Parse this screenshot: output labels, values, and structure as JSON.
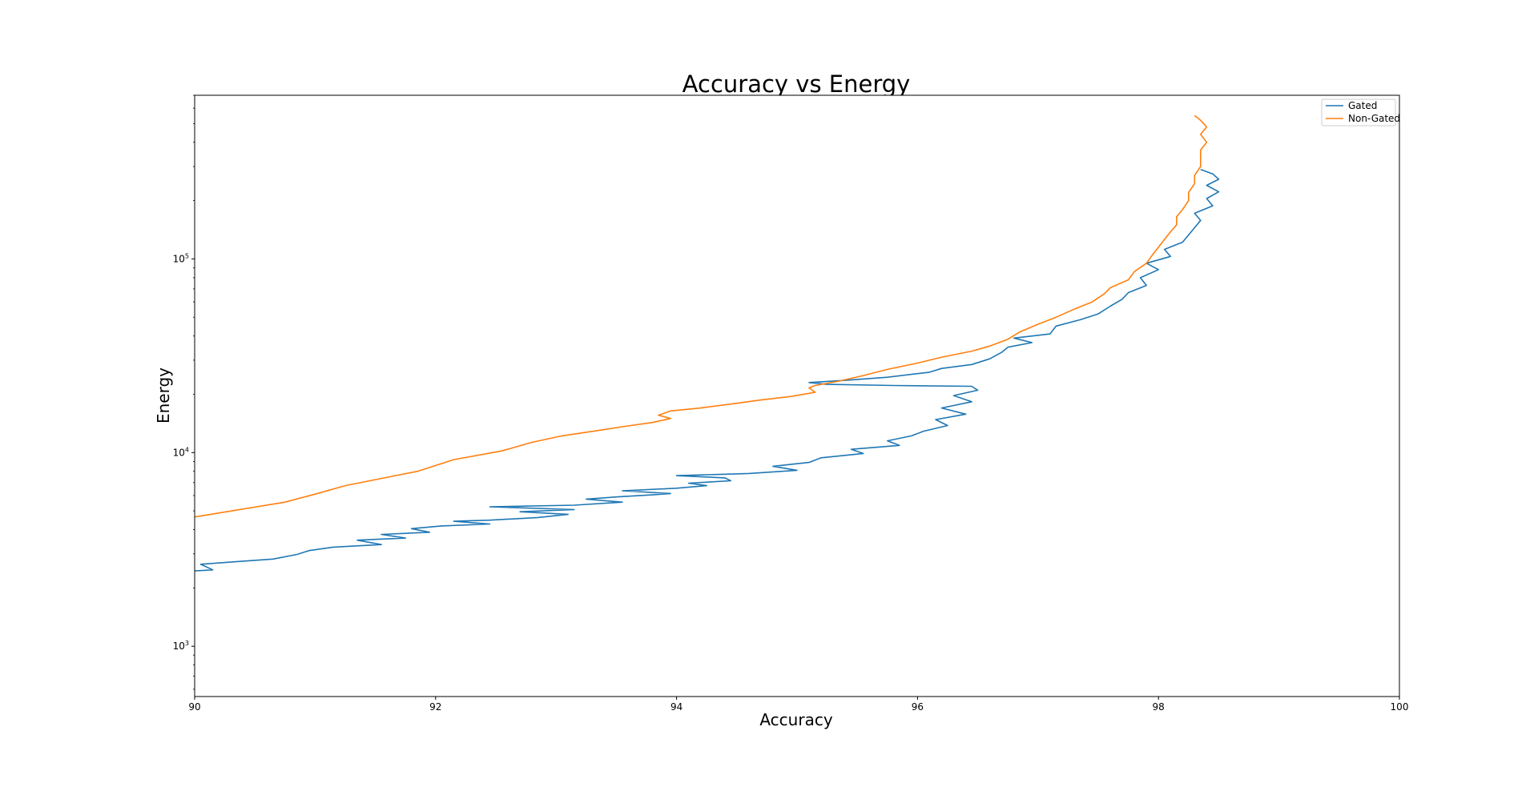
{
  "chart_data": {
    "type": "line",
    "title": "Accuracy vs Energy",
    "xlabel": "Accuracy",
    "ylabel": "Energy",
    "xlim": [
      90,
      100
    ],
    "ylim": [
      550,
      700000
    ],
    "yscale": "log",
    "grid": false,
    "legend_position": "top-right",
    "x_ticks": [
      90,
      92,
      94,
      96,
      98,
      100
    ],
    "x_tick_labels": [
      "90",
      "92",
      "94",
      "96",
      "98",
      "100"
    ],
    "y_ticks": [
      1000,
      10000,
      100000
    ],
    "y_tick_base": "10",
    "y_tick_exponents": [
      "3",
      "4",
      "5"
    ],
    "series": [
      {
        "name": "Gated",
        "color": "#1f77b4",
        "points": [
          [
            90.0,
            2450
          ],
          [
            90.15,
            2480
          ],
          [
            90.05,
            2650
          ],
          [
            90.4,
            2750
          ],
          [
            90.65,
            2820
          ],
          [
            90.85,
            2980
          ],
          [
            90.95,
            3120
          ],
          [
            91.15,
            3250
          ],
          [
            91.55,
            3350
          ],
          [
            91.35,
            3530
          ],
          [
            91.75,
            3620
          ],
          [
            91.55,
            3780
          ],
          [
            91.95,
            3880
          ],
          [
            91.8,
            4050
          ],
          [
            92.05,
            4180
          ],
          [
            92.45,
            4280
          ],
          [
            92.15,
            4420
          ],
          [
            92.45,
            4480
          ],
          [
            92.85,
            4620
          ],
          [
            93.1,
            4800
          ],
          [
            92.7,
            4950
          ],
          [
            93.15,
            5080
          ],
          [
            92.45,
            5250
          ],
          [
            93.15,
            5350
          ],
          [
            93.55,
            5550
          ],
          [
            93.25,
            5750
          ],
          [
            93.5,
            5900
          ],
          [
            93.8,
            6050
          ],
          [
            93.95,
            6150
          ],
          [
            93.55,
            6350
          ],
          [
            94.0,
            6550
          ],
          [
            94.25,
            6750
          ],
          [
            94.1,
            6950
          ],
          [
            94.45,
            7150
          ],
          [
            94.4,
            7400
          ],
          [
            94.0,
            7600
          ],
          [
            94.6,
            7800
          ],
          [
            95.0,
            8100
          ],
          [
            94.8,
            8500
          ],
          [
            95.1,
            8900
          ],
          [
            95.2,
            9400
          ],
          [
            95.55,
            9900
          ],
          [
            95.45,
            10400
          ],
          [
            95.85,
            10900
          ],
          [
            95.75,
            11500
          ],
          [
            95.95,
            12200
          ],
          [
            96.05,
            12900
          ],
          [
            96.25,
            13800
          ],
          [
            96.15,
            14800
          ],
          [
            96.4,
            15800
          ],
          [
            96.2,
            17000
          ],
          [
            96.45,
            18300
          ],
          [
            96.3,
            19700
          ],
          [
            96.5,
            21000
          ],
          [
            96.45,
            22000
          ],
          [
            95.8,
            22200
          ],
          [
            95.25,
            22500
          ],
          [
            95.1,
            23000
          ],
          [
            95.4,
            23600
          ],
          [
            95.75,
            24500
          ],
          [
            96.1,
            26000
          ],
          [
            96.2,
            27200
          ],
          [
            96.45,
            28500
          ],
          [
            96.6,
            30500
          ],
          [
            96.7,
            33000
          ],
          [
            96.75,
            35000
          ],
          [
            96.95,
            37000
          ],
          [
            96.8,
            39000
          ],
          [
            97.1,
            41000
          ],
          [
            97.15,
            45000
          ],
          [
            97.35,
            48500
          ],
          [
            97.5,
            52000
          ],
          [
            97.6,
            57000
          ],
          [
            97.7,
            62000
          ],
          [
            97.75,
            67000
          ],
          [
            97.9,
            73000
          ],
          [
            97.85,
            80000
          ],
          [
            98.0,
            88000
          ],
          [
            97.9,
            95000
          ],
          [
            98.1,
            103000
          ],
          [
            98.05,
            112000
          ],
          [
            98.2,
            122000
          ],
          [
            98.25,
            133000
          ],
          [
            98.3,
            145000
          ],
          [
            98.35,
            158000
          ],
          [
            98.3,
            172000
          ],
          [
            98.45,
            188000
          ],
          [
            98.4,
            205000
          ],
          [
            98.5,
            222000
          ],
          [
            98.4,
            240000
          ],
          [
            98.5,
            258000
          ],
          [
            98.45,
            275000
          ],
          [
            98.35,
            290000
          ]
        ]
      },
      {
        "name": "Non-Gated",
        "color": "#ff7f0e",
        "points": [
          [
            90.0,
            4650
          ],
          [
            90.35,
            5050
          ],
          [
            90.75,
            5550
          ],
          [
            91.0,
            6100
          ],
          [
            91.25,
            6750
          ],
          [
            91.5,
            7250
          ],
          [
            91.85,
            8000
          ],
          [
            92.15,
            9200
          ],
          [
            92.55,
            10200
          ],
          [
            92.8,
            11300
          ],
          [
            93.05,
            12200
          ],
          [
            93.35,
            13000
          ],
          [
            93.55,
            13600
          ],
          [
            93.8,
            14300
          ],
          [
            93.95,
            15000
          ],
          [
            93.85,
            15600
          ],
          [
            93.95,
            16400
          ],
          [
            94.2,
            17000
          ],
          [
            94.45,
            17800
          ],
          [
            94.7,
            18700
          ],
          [
            94.95,
            19500
          ],
          [
            95.15,
            20500
          ],
          [
            95.1,
            21600
          ],
          [
            95.15,
            22200
          ],
          [
            95.35,
            23400
          ],
          [
            95.55,
            25000
          ],
          [
            95.75,
            26900
          ],
          [
            96.0,
            29000
          ],
          [
            96.2,
            31100
          ],
          [
            96.45,
            33400
          ],
          [
            96.6,
            35500
          ],
          [
            96.75,
            38500
          ],
          [
            96.85,
            42000
          ],
          [
            97.0,
            46000
          ],
          [
            97.15,
            50000
          ],
          [
            97.3,
            55000
          ],
          [
            97.45,
            60000
          ],
          [
            97.55,
            66000
          ],
          [
            97.6,
            71000
          ],
          [
            97.75,
            78000
          ],
          [
            97.8,
            86000
          ],
          [
            97.9,
            95000
          ],
          [
            97.95,
            105000
          ],
          [
            98.0,
            115000
          ],
          [
            98.05,
            126000
          ],
          [
            98.1,
            138000
          ],
          [
            98.15,
            150000
          ],
          [
            98.15,
            165000
          ],
          [
            98.2,
            180000
          ],
          [
            98.25,
            200000
          ],
          [
            98.25,
            220000
          ],
          [
            98.3,
            245000
          ],
          [
            98.3,
            270000
          ],
          [
            98.35,
            300000
          ],
          [
            98.35,
            330000
          ],
          [
            98.35,
            365000
          ],
          [
            98.4,
            400000
          ],
          [
            98.35,
            440000
          ],
          [
            98.4,
            480000
          ],
          [
            98.35,
            520000
          ],
          [
            98.3,
            550000
          ]
        ]
      }
    ]
  }
}
